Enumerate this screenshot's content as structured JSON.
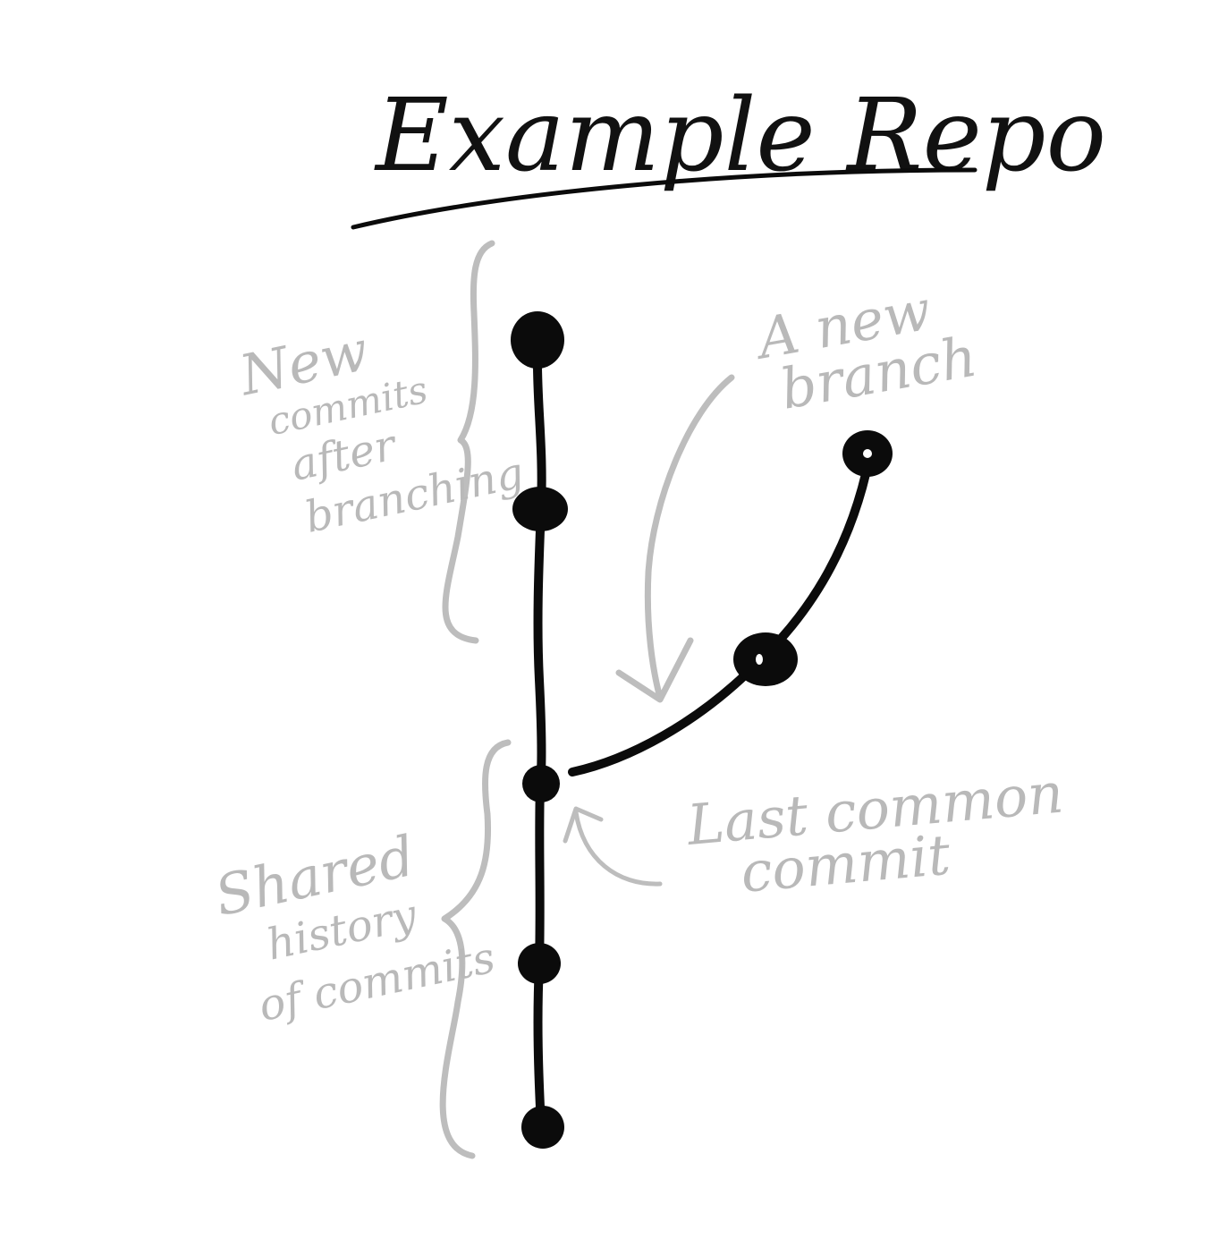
{
  "title": "Example Repo",
  "annotations": {
    "new_commits": [
      "New",
      "commits",
      "after",
      "branching"
    ],
    "new_branch": [
      "A new",
      "branch"
    ],
    "shared_history": [
      "Shared",
      "history",
      "of commits"
    ],
    "last_common_commit": [
      "Last common",
      "commit"
    ]
  },
  "colors": {
    "ink": "#0b0b0b",
    "annotation": "#bdbdbd",
    "background": "#ffffff"
  },
  "graph": {
    "main_branch_commits": 5,
    "new_branch_commits": 2,
    "branch_point_commit_index": 3
  }
}
